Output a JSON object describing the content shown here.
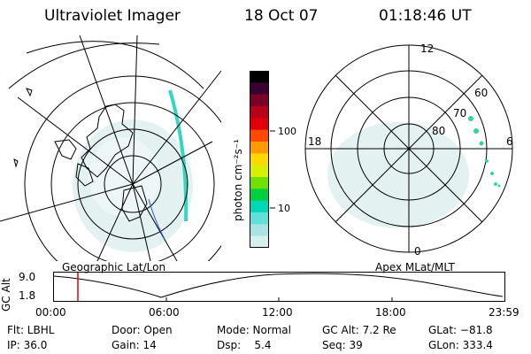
{
  "header": {
    "instrument": "Ultraviolet Imager",
    "date": "18 Oct 07",
    "time": "01:18:46 UT"
  },
  "colorbar": {
    "unit_label": "photon cm⁻²s⁻¹",
    "ticks": [
      "100",
      "10"
    ],
    "colors": [
      "#000000",
      "#3a0030",
      "#7a0028",
      "#b8001a",
      "#e0000a",
      "#ff4800",
      "#ff9a00",
      "#ffd800",
      "#d6f000",
      "#70e000",
      "#00d040",
      "#00d8b8",
      "#60e0d8",
      "#a8e4e4",
      "#d6eeee"
    ]
  },
  "geographic_panel": {
    "label": "Geographic Lat/Lon"
  },
  "apex_panel": {
    "label": "Apex MLat/MLT",
    "mlt_labels": [
      "12",
      "18",
      "6",
      "0"
    ],
    "lat_labels": [
      "60",
      "70",
      "80"
    ]
  },
  "altitude_plot": {
    "axis_label": "GC Alt",
    "y_ticks": [
      "9.0",
      "1.8"
    ],
    "x_ticks": [
      "00:00",
      "06:00",
      "12:00",
      "18:00",
      "23:59"
    ],
    "marker_time": "01:18"
  },
  "info": {
    "flt": "Flt: LBHL",
    "door": "Door: Open",
    "mode": "Mode: Normal",
    "gcalt": "GC Alt: 7.2 Re",
    "glat": "GLat: −81.8",
    "ip": "IP: 36.0",
    "gain": "Gain: 14",
    "dsp": "Dsp:    5.4",
    "seq": "Seq: 39",
    "glon": "GLon: 333.4"
  }
}
